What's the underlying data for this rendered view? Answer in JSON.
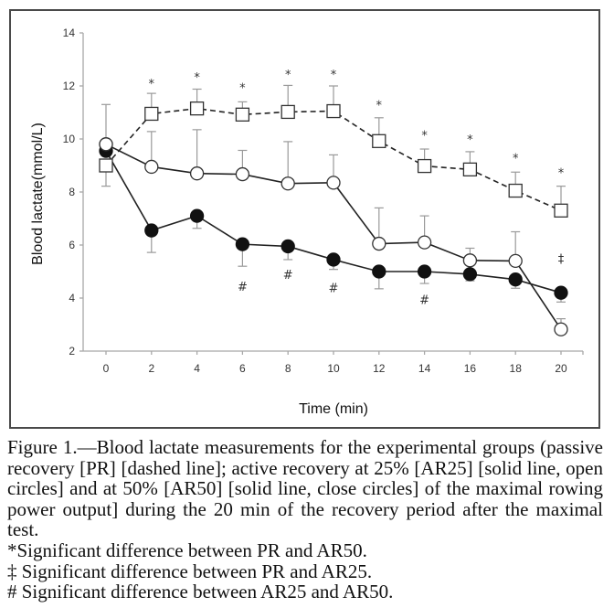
{
  "chart_data": {
    "type": "line",
    "title": "",
    "xlabel": "Time (min)",
    "ylabel": "Blood lactate(mmol/L)",
    "xlim": [
      0,
      20
    ],
    "ylim": [
      2,
      14
    ],
    "x_ticks": [
      0,
      2,
      4,
      6,
      8,
      10,
      12,
      14,
      16,
      18,
      20
    ],
    "y_ticks": [
      2,
      4,
      6,
      8,
      10,
      12,
      14
    ],
    "grid": false,
    "legend": "none (described in caption)",
    "x": [
      0,
      2,
      4,
      6,
      8,
      10,
      12,
      14,
      16,
      18,
      20
    ],
    "series": [
      {
        "name": "PR",
        "description": "passive recovery, dashed line, open squares",
        "line_style": "dashed",
        "marker": "open-square",
        "values": [
          9.0,
          10.95,
          11.15,
          10.92,
          11.02,
          11.05,
          9.92,
          8.98,
          8.85,
          8.05,
          7.3
        ],
        "error_bar_direction": "up",
        "error_bar_ends": [
          8.22,
          11.72,
          11.88,
          11.4,
          12.02,
          12.0,
          10.8,
          9.62,
          9.52,
          8.75,
          8.22
        ]
      },
      {
        "name": "AR25",
        "description": "active recovery at 25%, solid line, open circles",
        "line_style": "solid",
        "marker": "open-circle",
        "values": [
          9.8,
          8.95,
          8.7,
          8.67,
          8.32,
          8.35,
          6.05,
          6.1,
          5.42,
          5.4,
          2.82
        ],
        "error_bar_direction": "up",
        "error_bar_ends": [
          11.3,
          10.28,
          10.35,
          9.57,
          9.9,
          9.4,
          7.4,
          7.1,
          5.88,
          6.5,
          3.22
        ]
      },
      {
        "name": "AR50",
        "description": "active recovery at 50%, solid line, closed circles",
        "line_style": "solid",
        "marker": "filled-circle",
        "values": [
          9.55,
          6.55,
          7.1,
          6.03,
          5.95,
          5.45,
          5.0,
          5.0,
          4.9,
          4.7,
          4.2
        ],
        "error_bar_direction": "down",
        "error_bar_ends": [
          9.55,
          5.72,
          6.63,
          5.2,
          5.45,
          5.08,
          4.35,
          4.55,
          4.65,
          4.37,
          3.85
        ]
      }
    ],
    "annotations": [
      {
        "symbol": "*",
        "x": 2,
        "y": 12.1
      },
      {
        "symbol": "*",
        "x": 4,
        "y": 12.35
      },
      {
        "symbol": "*",
        "x": 6,
        "y": 11.95
      },
      {
        "symbol": "*",
        "x": 8,
        "y": 12.45
      },
      {
        "symbol": "*",
        "x": 10,
        "y": 12.45
      },
      {
        "symbol": "*",
        "x": 12,
        "y": 11.3
      },
      {
        "symbol": "*",
        "x": 14,
        "y": 10.15
      },
      {
        "symbol": "*",
        "x": 16,
        "y": 10.0
      },
      {
        "symbol": "*",
        "x": 18,
        "y": 9.3
      },
      {
        "symbol": "*",
        "x": 20,
        "y": 8.75
      },
      {
        "symbol": "#",
        "x": 6,
        "y": 4.45
      },
      {
        "symbol": "#",
        "x": 8,
        "y": 4.9
      },
      {
        "symbol": "#",
        "x": 10,
        "y": 4.4
      },
      {
        "symbol": "#",
        "x": 14,
        "y": 3.95
      },
      {
        "symbol": "‡",
        "x": 20,
        "y": 5.5
      }
    ]
  },
  "caption": {
    "main": "Figure 1.—Blood lactate measurements for the experimental groups (passive recovery [PR] [dashed line]; active recovery at 25% [AR25] [solid line, open circles] and at 50% [AR50] [solid line, close circles] of the maximal rowing power output] during the 20 min of the recovery period after the maximal test.",
    "notes": [
      "*Significant difference between PR and AR50.",
      "‡ Significant difference between PR and AR25.",
      "# Significant difference between AR25 and AR50."
    ]
  }
}
